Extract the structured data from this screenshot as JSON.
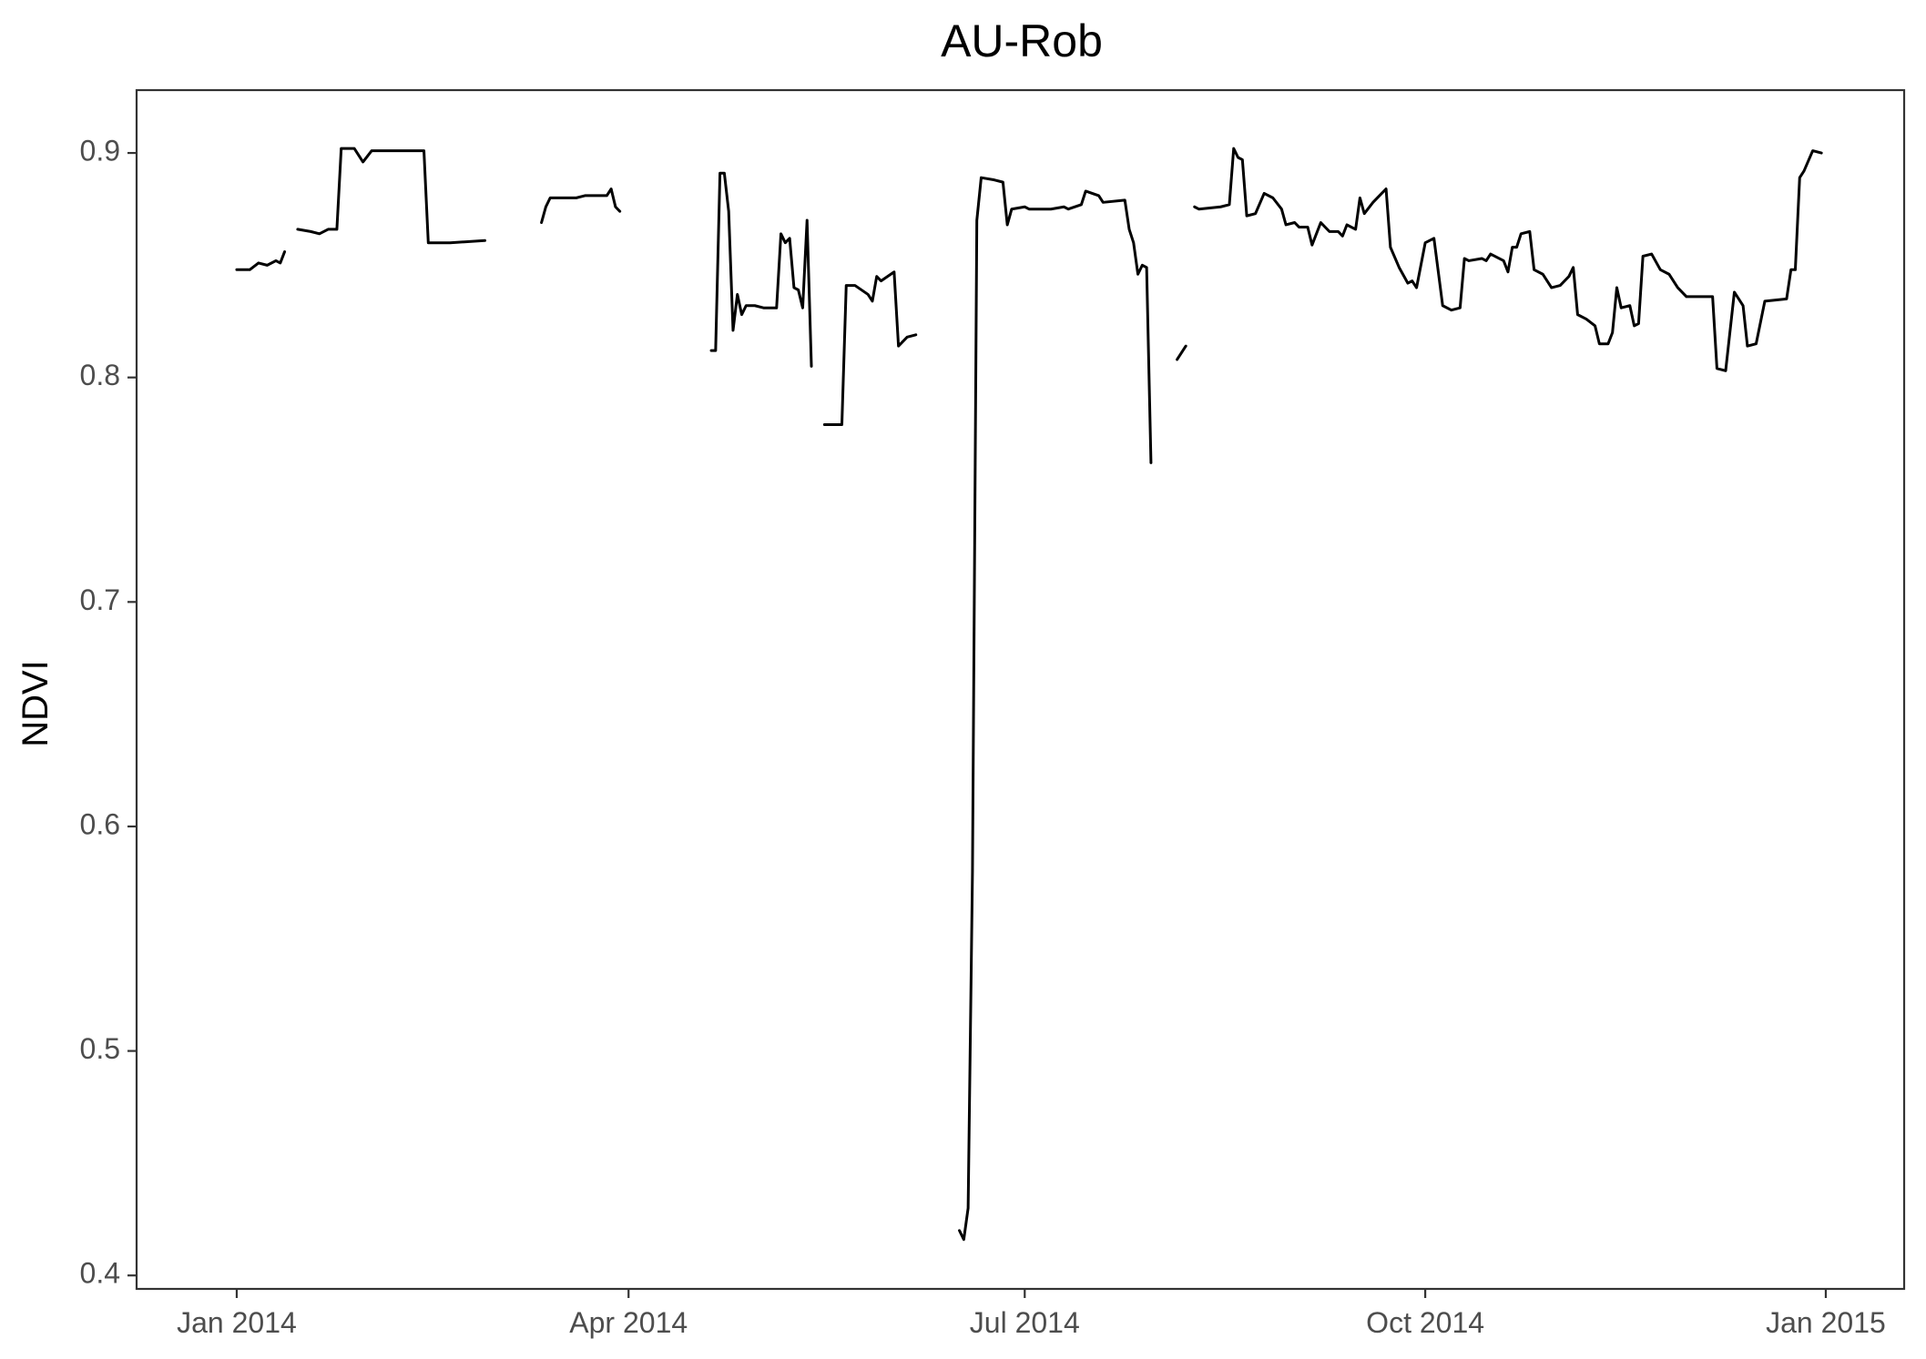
{
  "chart_data": {
    "type": "line",
    "title": "AU-Rob",
    "xlabel": "",
    "ylabel": "NDVI",
    "xlim": [
      "2013-12-09",
      "2015-01-19"
    ],
    "ylim": [
      0.394,
      0.928
    ],
    "grid": false,
    "legend": "none",
    "line_color": "#000000",
    "x_ticks": [
      {
        "date": "2014-01-01",
        "label": "Jan 2014"
      },
      {
        "date": "2014-04-01",
        "label": "Apr 2014"
      },
      {
        "date": "2014-07-01",
        "label": "Jul 2014"
      },
      {
        "date": "2014-10-01",
        "label": "Oct 2014"
      },
      {
        "date": "2015-01-01",
        "label": "Jan 2015"
      }
    ],
    "y_ticks": [
      {
        "value": 0.4,
        "label": "0.4"
      },
      {
        "value": 0.5,
        "label": "0.5"
      },
      {
        "value": 0.6,
        "label": "0.6"
      },
      {
        "value": 0.7,
        "label": "0.7"
      },
      {
        "value": 0.8,
        "label": "0.8"
      },
      {
        "value": 0.9,
        "label": "0.9"
      }
    ],
    "series": [
      {
        "segments": [
          [
            [
              "2014-01-01",
              0.848
            ],
            [
              "2014-01-04",
              0.848
            ],
            [
              "2014-01-06",
              0.851
            ],
            [
              "2014-01-08",
              0.85
            ],
            [
              "2014-01-10",
              0.852
            ],
            [
              "2014-01-11",
              0.851
            ],
            [
              "2014-01-12",
              0.856
            ]
          ],
          [
            [
              "2014-01-15",
              0.866
            ],
            [
              "2014-01-18",
              0.865
            ],
            [
              "2014-01-20",
              0.864
            ],
            [
              "2014-01-22",
              0.866
            ],
            [
              "2014-01-24",
              0.866
            ],
            [
              "2014-01-25",
              0.902
            ],
            [
              "2014-01-28",
              0.902
            ],
            [
              "2014-01-30",
              0.896
            ],
            [
              "2014-02-01",
              0.901
            ],
            [
              "2014-02-08",
              0.901
            ],
            [
              "2014-02-13",
              0.901
            ],
            [
              "2014-02-14",
              0.86
            ],
            [
              "2014-02-19",
              0.86
            ],
            [
              "2014-02-27",
              0.861
            ]
          ],
          [
            [
              "2014-03-12",
              0.869
            ],
            [
              "2014-03-13",
              0.876
            ],
            [
              "2014-03-14",
              0.88
            ],
            [
              "2014-03-20",
              0.88
            ],
            [
              "2014-03-22",
              0.881
            ],
            [
              "2014-03-27",
              0.881
            ],
            [
              "2014-03-28",
              0.884
            ],
            [
              "2014-03-29",
              0.876
            ],
            [
              "2014-03-30",
              0.874
            ]
          ],
          [
            [
              "2014-04-20",
              0.812
            ],
            [
              "2014-04-21",
              0.812
            ],
            [
              "2014-04-22",
              0.891
            ],
            [
              "2014-04-23",
              0.891
            ],
            [
              "2014-04-24",
              0.874
            ],
            [
              "2014-04-25",
              0.821
            ],
            [
              "2014-04-26",
              0.837
            ],
            [
              "2014-04-27",
              0.828
            ],
            [
              "2014-04-28",
              0.832
            ],
            [
              "2014-04-30",
              0.832
            ],
            [
              "2014-05-02",
              0.831
            ],
            [
              "2014-05-05",
              0.831
            ],
            [
              "2014-05-06",
              0.864
            ],
            [
              "2014-05-07",
              0.86
            ],
            [
              "2014-05-08",
              0.862
            ],
            [
              "2014-05-09",
              0.84
            ],
            [
              "2014-05-10",
              0.839
            ],
            [
              "2014-05-11",
              0.831
            ],
            [
              "2014-05-12",
              0.87
            ],
            [
              "2014-05-13",
              0.805
            ]
          ],
          [
            [
              "2014-05-16",
              0.779
            ],
            [
              "2014-05-20",
              0.779
            ],
            [
              "2014-05-21",
              0.841
            ],
            [
              "2014-05-23",
              0.841
            ],
            [
              "2014-05-26",
              0.837
            ],
            [
              "2014-05-27",
              0.834
            ],
            [
              "2014-05-28",
              0.845
            ],
            [
              "2014-05-29",
              0.843
            ],
            [
              "2014-06-01",
              0.847
            ],
            [
              "2014-06-02",
              0.814
            ],
            [
              "2014-06-04",
              0.818
            ],
            [
              "2014-06-06",
              0.819
            ]
          ],
          [
            [
              "2014-06-16",
              0.42
            ],
            [
              "2014-06-17",
              0.416
            ],
            [
              "2014-06-18",
              0.43
            ],
            [
              "2014-06-19",
              0.58
            ],
            [
              "2014-06-20",
              0.87
            ],
            [
              "2014-06-21",
              0.889
            ],
            [
              "2014-06-24",
              0.888
            ],
            [
              "2014-06-26",
              0.887
            ],
            [
              "2014-06-27",
              0.868
            ],
            [
              "2014-06-28",
              0.875
            ],
            [
              "2014-07-01",
              0.876
            ],
            [
              "2014-07-02",
              0.875
            ],
            [
              "2014-07-07",
              0.875
            ],
            [
              "2014-07-10",
              0.876
            ],
            [
              "2014-07-11",
              0.875
            ],
            [
              "2014-07-14",
              0.877
            ],
            [
              "2014-07-15",
              0.883
            ],
            [
              "2014-07-18",
              0.881
            ],
            [
              "2014-07-19",
              0.878
            ],
            [
              "2014-07-24",
              0.879
            ],
            [
              "2014-07-25",
              0.866
            ],
            [
              "2014-07-26",
              0.86
            ],
            [
              "2014-07-27",
              0.846
            ],
            [
              "2014-07-28",
              0.85
            ],
            [
              "2014-07-29",
              0.849
            ],
            [
              "2014-07-30",
              0.762
            ]
          ],
          [
            [
              "2014-08-05",
              0.808
            ],
            [
              "2014-08-07",
              0.814
            ]
          ],
          [
            [
              "2014-08-09",
              0.876
            ],
            [
              "2014-08-10",
              0.875
            ],
            [
              "2014-08-15",
              0.876
            ],
            [
              "2014-08-17",
              0.877
            ],
            [
              "2014-08-18",
              0.902
            ],
            [
              "2014-08-19",
              0.898
            ],
            [
              "2014-08-20",
              0.897
            ],
            [
              "2014-08-21",
              0.872
            ],
            [
              "2014-08-23",
              0.873
            ],
            [
              "2014-08-25",
              0.882
            ],
            [
              "2014-08-27",
              0.88
            ],
            [
              "2014-08-29",
              0.875
            ],
            [
              "2014-08-30",
              0.868
            ],
            [
              "2014-09-01",
              0.869
            ],
            [
              "2014-09-02",
              0.867
            ],
            [
              "2014-09-04",
              0.867
            ],
            [
              "2014-09-05",
              0.859
            ],
            [
              "2014-09-07",
              0.869
            ],
            [
              "2014-09-09",
              0.865
            ],
            [
              "2014-09-11",
              0.865
            ],
            [
              "2014-09-12",
              0.863
            ],
            [
              "2014-09-13",
              0.868
            ],
            [
              "2014-09-15",
              0.866
            ],
            [
              "2014-09-16",
              0.88
            ],
            [
              "2014-09-17",
              0.873
            ],
            [
              "2014-09-19",
              0.878
            ],
            [
              "2014-09-21",
              0.882
            ],
            [
              "2014-09-22",
              0.884
            ],
            [
              "2014-09-23",
              0.858
            ],
            [
              "2014-09-25",
              0.849
            ],
            [
              "2014-09-27",
              0.842
            ],
            [
              "2014-09-28",
              0.843
            ],
            [
              "2014-09-29",
              0.84
            ],
            [
              "2014-10-01",
              0.86
            ],
            [
              "2014-10-03",
              0.862
            ],
            [
              "2014-10-05",
              0.832
            ],
            [
              "2014-10-07",
              0.83
            ],
            [
              "2014-10-09",
              0.831
            ],
            [
              "2014-10-10",
              0.853
            ],
            [
              "2014-10-11",
              0.852
            ],
            [
              "2014-10-14",
              0.853
            ],
            [
              "2014-10-15",
              0.852
            ],
            [
              "2014-10-16",
              0.855
            ],
            [
              "2014-10-19",
              0.852
            ],
            [
              "2014-10-20",
              0.847
            ],
            [
              "2014-10-21",
              0.858
            ],
            [
              "2014-10-22",
              0.858
            ],
            [
              "2014-10-23",
              0.864
            ],
            [
              "2014-10-25",
              0.865
            ],
            [
              "2014-10-26",
              0.848
            ],
            [
              "2014-10-28",
              0.846
            ],
            [
              "2014-10-30",
              0.84
            ],
            [
              "2014-11-01",
              0.841
            ],
            [
              "2014-11-03",
              0.845
            ],
            [
              "2014-11-04",
              0.849
            ],
            [
              "2014-11-05",
              0.828
            ],
            [
              "2014-11-07",
              0.826
            ],
            [
              "2014-11-09",
              0.823
            ],
            [
              "2014-11-10",
              0.815
            ],
            [
              "2014-11-12",
              0.815
            ],
            [
              "2014-11-13",
              0.82
            ],
            [
              "2014-11-14",
              0.84
            ],
            [
              "2014-11-15",
              0.831
            ],
            [
              "2014-11-17",
              0.832
            ],
            [
              "2014-11-18",
              0.823
            ],
            [
              "2014-11-19",
              0.824
            ],
            [
              "2014-11-20",
              0.854
            ],
            [
              "2014-11-22",
              0.855
            ],
            [
              "2014-11-24",
              0.848
            ],
            [
              "2014-11-26",
              0.846
            ],
            [
              "2014-11-28",
              0.84
            ],
            [
              "2014-11-30",
              0.836
            ],
            [
              "2014-12-06",
              0.836
            ],
            [
              "2014-12-07",
              0.804
            ],
            [
              "2014-12-09",
              0.803
            ],
            [
              "2014-12-11",
              0.838
            ],
            [
              "2014-12-13",
              0.832
            ],
            [
              "2014-12-14",
              0.814
            ],
            [
              "2014-12-16",
              0.815
            ],
            [
              "2014-12-18",
              0.834
            ],
            [
              "2014-12-23",
              0.835
            ],
            [
              "2014-12-24",
              0.848
            ],
            [
              "2014-12-25",
              0.848
            ],
            [
              "2014-12-26",
              0.889
            ],
            [
              "2014-12-27",
              0.892
            ],
            [
              "2014-12-29",
              0.901
            ],
            [
              "2014-12-31",
              0.9
            ]
          ]
        ]
      }
    ]
  }
}
